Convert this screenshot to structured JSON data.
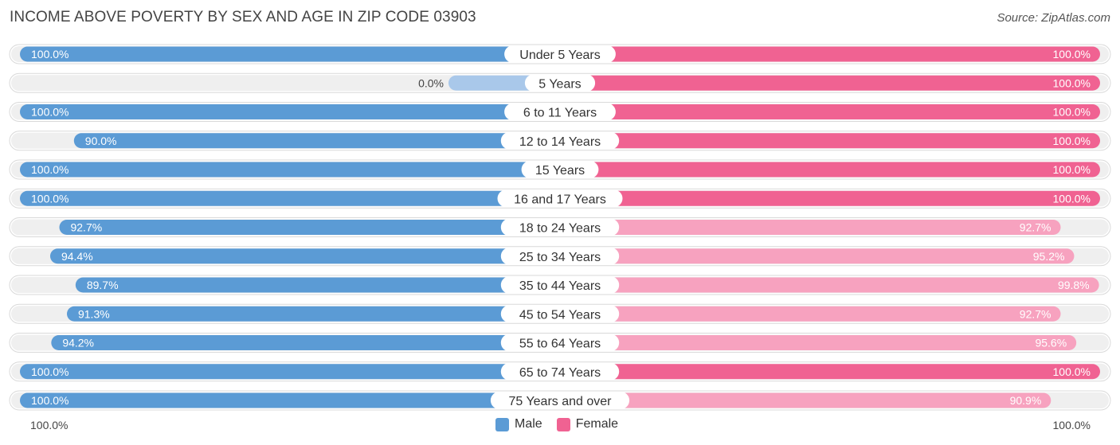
{
  "title": "INCOME ABOVE POVERTY BY SEX AND AGE IN ZIP CODE 03903",
  "source": "Source: ZipAtlas.com",
  "colors": {
    "male": "#5b9bd5",
    "male_light": "#a9c8ea",
    "female": "#f06292",
    "female_light": "#f7a2bf",
    "row_bg": "#efefef"
  },
  "chart_data": {
    "type": "bar",
    "orientation": "horizontal-diverging",
    "title": "INCOME ABOVE POVERTY BY SEX AND AGE IN ZIP CODE 03903",
    "categories": [
      "Under 5 Years",
      "5 Years",
      "6 to 11 Years",
      "12 to 14 Years",
      "15 Years",
      "16 and 17 Years",
      "18 to 24 Years",
      "25 to 34 Years",
      "35 to 44 Years",
      "45 to 54 Years",
      "55 to 64 Years",
      "65 to 74 Years",
      "75 Years and over"
    ],
    "series": [
      {
        "name": "Male",
        "values": [
          100.0,
          0.0,
          100.0,
          90.0,
          100.0,
          100.0,
          92.7,
          94.4,
          89.7,
          91.3,
          94.2,
          100.0,
          100.0
        ]
      },
      {
        "name": "Female",
        "values": [
          100.0,
          100.0,
          100.0,
          100.0,
          100.0,
          100.0,
          92.7,
          95.2,
          99.8,
          92.7,
          95.6,
          100.0,
          90.9
        ]
      }
    ],
    "value_labels": {
      "male": [
        "100.0%",
        "0.0%",
        "100.0%",
        "90.0%",
        "100.0%",
        "100.0%",
        "92.7%",
        "94.4%",
        "89.7%",
        "91.3%",
        "94.2%",
        "100.0%",
        "100.0%"
      ],
      "female": [
        "100.0%",
        "100.0%",
        "100.0%",
        "100.0%",
        "100.0%",
        "100.0%",
        "92.7%",
        "95.2%",
        "99.8%",
        "92.7%",
        "95.6%",
        "100.0%",
        "90.9%"
      ]
    },
    "xlim": [
      0,
      100
    ],
    "axis_left_label": "100.0%",
    "axis_right_label": "100.0%",
    "legend": [
      "Male",
      "Female"
    ],
    "legend_position": "bottom-center"
  }
}
